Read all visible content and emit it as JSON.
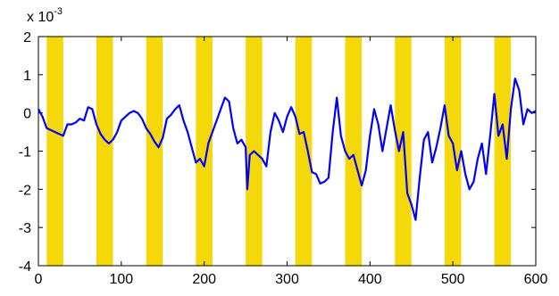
{
  "chart_data": {
    "type": "line",
    "title": "",
    "xlabel": "",
    "ylabel": "",
    "xlim": [
      0,
      600
    ],
    "ylim": [
      -4,
      2
    ],
    "y_multiplier": {
      "base": "x 10",
      "exponent": "-3"
    },
    "x_ticks": [
      0,
      100,
      200,
      300,
      400,
      500,
      600
    ],
    "y_ticks": [
      -4,
      -3,
      -2,
      -1,
      0,
      1,
      2
    ],
    "grid": false,
    "line_color": "#0000ff",
    "band_color": "#f5d80a",
    "bands": [
      [
        10,
        30
      ],
      [
        70,
        90
      ],
      [
        130,
        150
      ],
      [
        190,
        210
      ],
      [
        250,
        270
      ],
      [
        310,
        330
      ],
      [
        370,
        390
      ],
      [
        430,
        450
      ],
      [
        490,
        510
      ],
      [
        550,
        570
      ]
    ],
    "series": [
      {
        "x": [
          0,
          5,
          10,
          15,
          20,
          25,
          30,
          35,
          40,
          45,
          50,
          55,
          60,
          65,
          70,
          75,
          80,
          85,
          90,
          95,
          100,
          105,
          110,
          115,
          120,
          125,
          130,
          135,
          140,
          145,
          150,
          155,
          160,
          165,
          170,
          175,
          180,
          185,
          190,
          195,
          200,
          205,
          210,
          215,
          220,
          225,
          230,
          235,
          240,
          245,
          250,
          252,
          255,
          260,
          265,
          270,
          275,
          280,
          285,
          290,
          295,
          300,
          305,
          310,
          315,
          320,
          325,
          330,
          335,
          340,
          345,
          350,
          355,
          360,
          365,
          370,
          375,
          380,
          385,
          390,
          395,
          400,
          405,
          410,
          415,
          420,
          425,
          430,
          435,
          440,
          445,
          450,
          455,
          460,
          465,
          470,
          475,
          480,
          485,
          490,
          495,
          500,
          505,
          510,
          515,
          520,
          525,
          530,
          535,
          540,
          545,
          550,
          555,
          560,
          565,
          570,
          575,
          580,
          585,
          590,
          595,
          600
        ],
        "y": [
          0.1,
          -0.1,
          -0.4,
          -0.45,
          -0.5,
          -0.55,
          -0.6,
          -0.3,
          -0.3,
          -0.25,
          -0.15,
          -0.2,
          0.15,
          0.1,
          -0.3,
          -0.55,
          -0.7,
          -0.8,
          -0.7,
          -0.5,
          -0.2,
          -0.1,
          0,
          0.05,
          0,
          -0.15,
          -0.4,
          -0.55,
          -0.75,
          -0.9,
          -0.65,
          -0.15,
          -0.05,
          0.1,
          0.2,
          -0.2,
          -0.5,
          -0.9,
          -1.3,
          -1.2,
          -1.4,
          -0.8,
          -0.5,
          -0.2,
          0.1,
          0.4,
          0.3,
          -0.4,
          -0.8,
          -0.7,
          -0.9,
          -2.0,
          -1.1,
          -1.0,
          -1.1,
          -1.2,
          -1.4,
          -0.5,
          0,
          -0.2,
          -0.5,
          -0.1,
          0.15,
          -0.1,
          -0.55,
          -0.5,
          -1.0,
          -1.55,
          -1.6,
          -1.85,
          -1.8,
          -1.7,
          -0.5,
          0.4,
          -0.6,
          -1.0,
          -1.2,
          -1.1,
          -1.5,
          -1.9,
          -1.5,
          -0.6,
          0.1,
          -0.3,
          -1.0,
          -0.4,
          0.2,
          -0.45,
          -1.0,
          -0.5,
          -2.1,
          -2.4,
          -2.8,
          -1.7,
          -0.7,
          -0.5,
          -1.3,
          -0.9,
          -0.4,
          0.2,
          -0.6,
          -0.8,
          -1.5,
          -1.0,
          -1.6,
          -2.0,
          -1.8,
          -1.2,
          -0.8,
          -1.6,
          -0.6,
          0.5,
          -0.6,
          -0.3,
          -1.2,
          0.1,
          0.9,
          0.6,
          -0.3,
          0.1,
          0.0,
          0.05
        ]
      }
    ]
  }
}
